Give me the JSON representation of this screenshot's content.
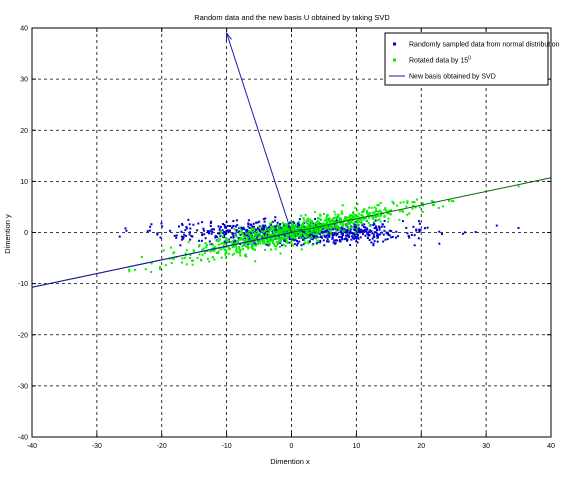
{
  "chart_data": {
    "type": "scatter",
    "title": "Random data and the new basis U obtained by taking SVD",
    "xlabel": "Dimention x",
    "ylabel": "Dimention y",
    "xlim": [
      -40,
      40
    ],
    "ylim": [
      -40,
      40
    ],
    "x_ticks": [
      -40,
      -30,
      -20,
      -10,
      0,
      10,
      20,
      30,
      40
    ],
    "y_ticks": [
      -40,
      -30,
      -20,
      -10,
      0,
      10,
      20,
      30,
      40
    ],
    "x_tick_labels": [
      "-40",
      "-30",
      "-20",
      "-10",
      "0",
      "10",
      "20",
      "30",
      "40"
    ],
    "y_tick_labels": [
      "-40",
      "-30",
      "-20",
      "-10",
      "0",
      "10",
      "20",
      "30",
      "40"
    ],
    "grid": "on",
    "legend": {
      "placement": "top-right",
      "entries": [
        {
          "label": "Randomly sampled data from normal distribution",
          "color": "#0000cc",
          "marker": "dot"
        },
        {
          "label": "Rotated data by 15",
          "superscript": "0",
          "color": "#00ee00",
          "marker": "dot"
        },
        {
          "label": "New basis obtained by SVD",
          "color": "#1a1aa6",
          "marker": "line"
        }
      ]
    },
    "series": [
      {
        "name": "Randomly sampled data from normal distribution",
        "kind": "scatter",
        "color": "#0000cc",
        "spread": {
          "x_range": [
            -30,
            35
          ],
          "y_range": [
            -2.5,
            3
          ]
        }
      },
      {
        "name": "Rotated data by 15",
        "kind": "scatter",
        "color": "#00ee00",
        "spread": {
          "slope": 0.268,
          "x_range": [
            -25,
            35
          ],
          "perp_noise": 2.3
        }
      },
      {
        "name": "New basis obtained by SVD",
        "kind": "lines",
        "color": "#1a1aa6",
        "segments": [
          {
            "from": [
              -40,
              -10.7
            ],
            "to": [
              40,
              10.7
            ],
            "color": "#006400"
          },
          {
            "from": [
              -40,
              -10.7
            ],
            "to": [
              0,
              0
            ],
            "color": "#1a1aa6"
          },
          {
            "from": [
              0,
              0
            ],
            "to": [
              -10,
              39
            ],
            "color": "#1a1aa6",
            "arrow": true
          }
        ]
      }
    ],
    "colors": {
      "axes": "#000000",
      "grid": "#000000",
      "background": "#ffffff"
    }
  }
}
